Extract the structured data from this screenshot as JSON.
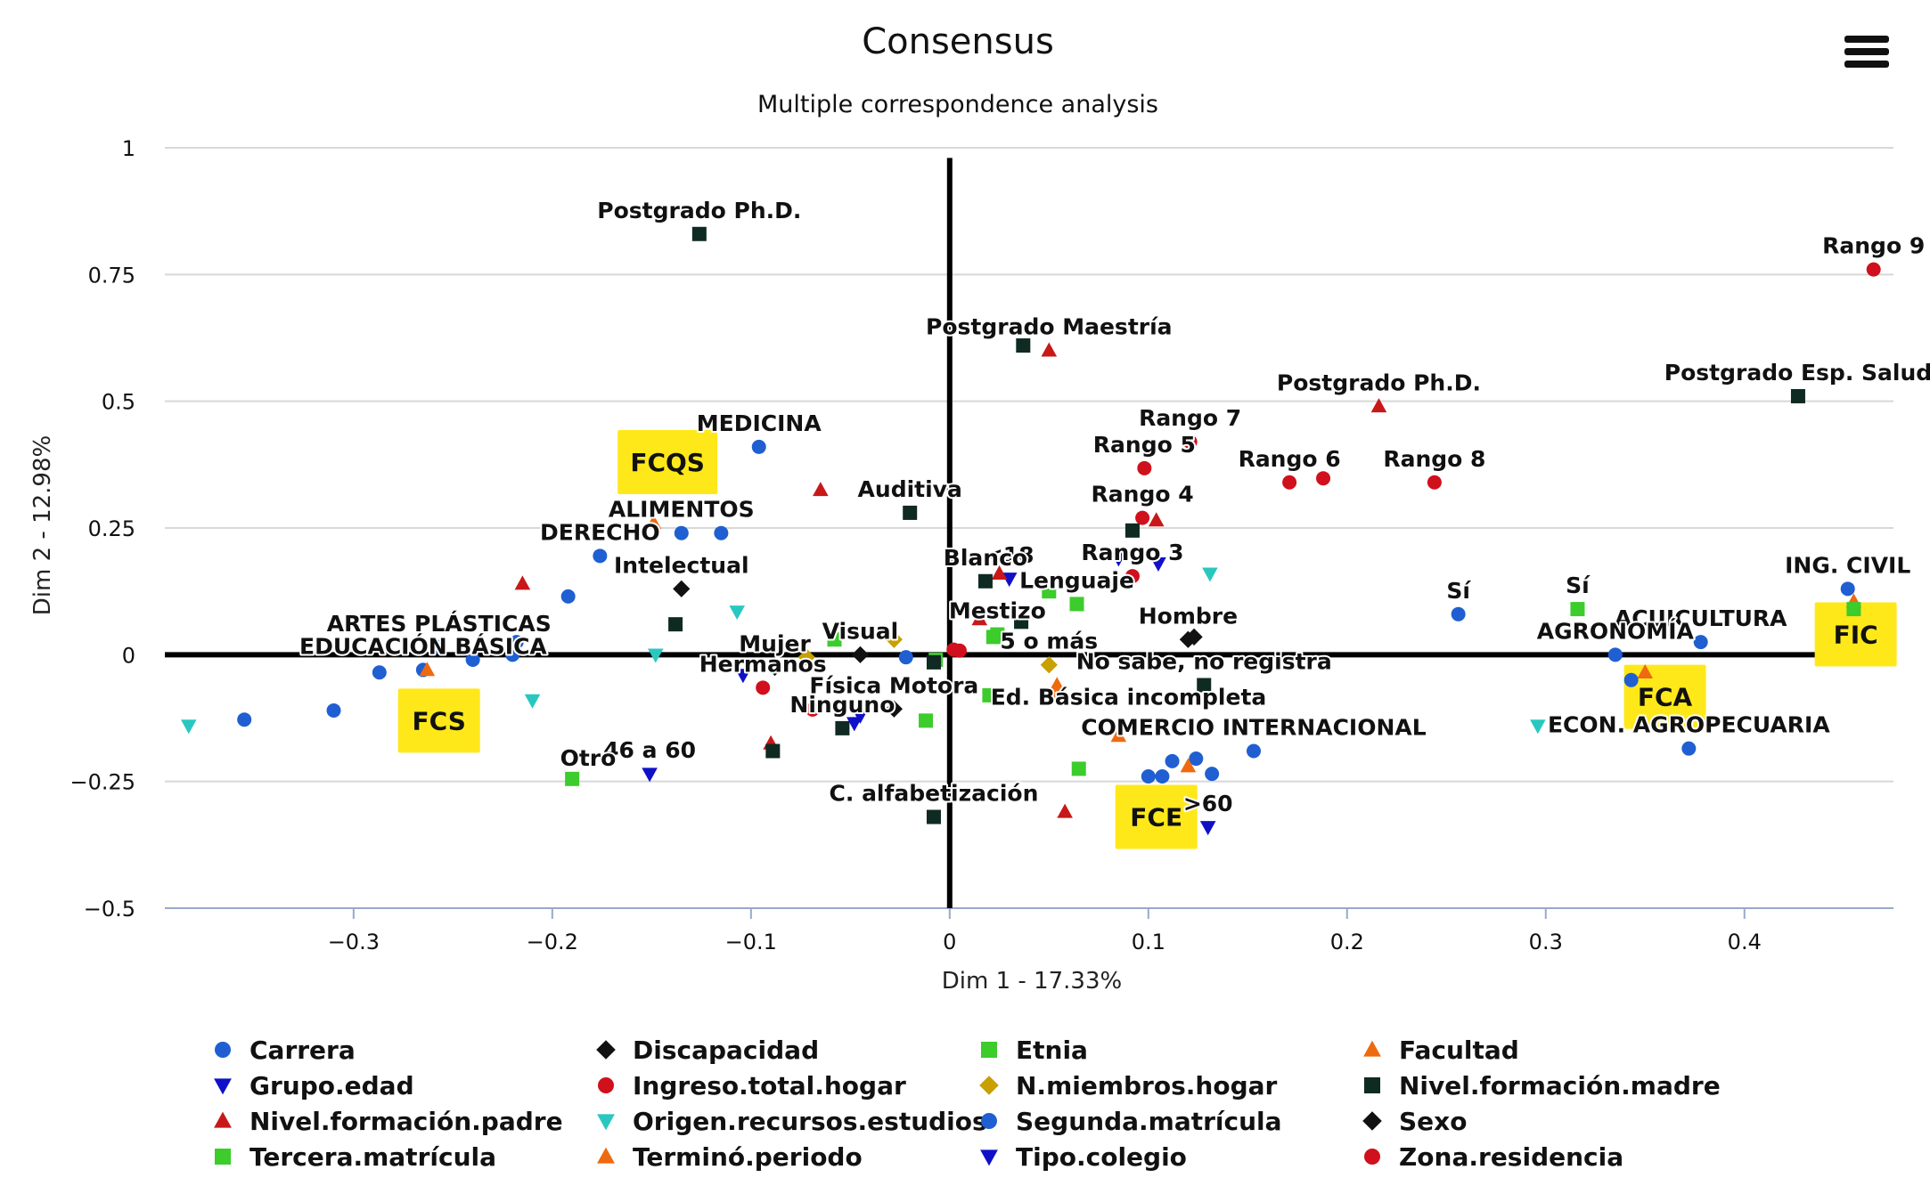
{
  "menu": {
    "icon": "hamburger-menu-icon"
  },
  "chart_data": {
    "type": "scatter",
    "title": "Consensus",
    "subtitle": "Multiple correspondence analysis",
    "xlabel": "Dim 1 - 17.33%",
    "ylabel": "Dim 2 - 12.98%",
    "xlim": [
      -0.395,
      0.475
    ],
    "ylim": [
      -0.5,
      1.0
    ],
    "xticks": [
      -0.3,
      -0.2,
      -0.1,
      0,
      0.1,
      0.2,
      0.3,
      0.4
    ],
    "xtick_labels": [
      "−0.3",
      "−0.2",
      "−0.1",
      "0",
      "0.1",
      "0.2",
      "0.3",
      "0.4"
    ],
    "yticks": [
      -0.5,
      -0.25,
      0,
      0.25,
      0.5,
      0.75,
      1
    ],
    "ytick_labels": [
      "−0.5",
      "−0.25",
      "0",
      "0.25",
      "0.5",
      "0.75",
      "1"
    ],
    "grid": "horizontal",
    "legend_position": "bottom",
    "series": [
      {
        "name": "Carrera",
        "symbol": "circle",
        "color": "#1f5fd1",
        "points": [
          {
            "x": -0.096,
            "y": 0.41,
            "label": "MEDICINA"
          },
          {
            "x": -0.135,
            "y": 0.24,
            "label": "ALIMENTOS"
          },
          {
            "x": -0.115,
            "y": 0.24
          },
          {
            "x": -0.176,
            "y": 0.195,
            "label": "DERECHO"
          },
          {
            "x": -0.192,
            "y": 0.115
          },
          {
            "x": -0.257,
            "y": 0.015,
            "label": "ARTES PLÁSTICAS"
          },
          {
            "x": -0.22,
            "y": 0.0
          },
          {
            "x": -0.24,
            "y": -0.01
          },
          {
            "x": -0.265,
            "y": -0.03,
            "label": "EDUCACIÓN BÁSICA"
          },
          {
            "x": -0.31,
            "y": -0.11
          },
          {
            "x": -0.355,
            "y": -0.128
          },
          {
            "x": 0.256,
            "y": 0.08,
            "label": "Sí"
          },
          {
            "x": 0.452,
            "y": 0.13,
            "label": "ING. CIVIL"
          },
          {
            "x": 0.378,
            "y": 0.025,
            "label": "ACUICULTURA"
          },
          {
            "x": 0.335,
            "y": 0.0,
            "label": "AGRONOMÍA"
          },
          {
            "x": 0.372,
            "y": -0.185,
            "label": "ECON. AGROPECUARIA"
          },
          {
            "x": 0.153,
            "y": -0.19,
            "label": "COMERCIO INTERNACIONAL"
          },
          {
            "x": 0.112,
            "y": -0.21
          },
          {
            "x": 0.124,
            "y": -0.205
          },
          {
            "x": 0.1,
            "y": -0.24
          },
          {
            "x": 0.132,
            "y": -0.235
          }
        ]
      },
      {
        "name": "Grupo.edad",
        "symbol": "triangle-down",
        "color": "#1010c8",
        "points": [
          {
            "x": -0.151,
            "y": -0.235,
            "label": "46 a 60"
          },
          {
            "x": 0.13,
            "y": -0.34,
            "label": ">60"
          },
          {
            "x": 0.03,
            "y": 0.15,
            "label": "<18"
          },
          {
            "x": -0.104,
            "y": -0.04
          },
          {
            "x": -0.045,
            "y": -0.12
          }
        ]
      },
      {
        "name": "Nivel.formación.padre",
        "symbol": "triangle-up",
        "color": "#c81818",
        "points": [
          {
            "x": 0.05,
            "y": 0.6,
            "label": "Postgrado Maestría"
          },
          {
            "x": 0.216,
            "y": 0.49,
            "label": "Postgrado Ph.D."
          },
          {
            "x": -0.065,
            "y": 0.325
          },
          {
            "x": 0.104,
            "y": 0.265
          },
          {
            "x": 0.025,
            "y": 0.16
          },
          {
            "x": 0.015,
            "y": 0.07
          },
          {
            "x": 0.058,
            "y": -0.31
          },
          {
            "x": -0.09,
            "y": -0.175
          },
          {
            "x": -0.215,
            "y": 0.14
          }
        ]
      },
      {
        "name": "Tercera.matrícula",
        "symbol": "square",
        "color": "#3ccc2c",
        "points": [
          {
            "x": 0.316,
            "y": 0.09,
            "label": "Sí"
          },
          {
            "x": -0.19,
            "y": -0.245
          },
          {
            "x": 0.065,
            "y": -0.225
          },
          {
            "x": 0.05,
            "y": 0.125
          },
          {
            "x": -0.058,
            "y": 0.03
          },
          {
            "x": -0.012,
            "y": -0.13
          },
          {
            "x": 0.02,
            "y": -0.08
          },
          {
            "x": 0.022,
            "y": 0.035
          }
        ]
      },
      {
        "name": "Discapacidad",
        "symbol": "diamond",
        "color": "#111111",
        "points": [
          {
            "x": -0.135,
            "y": 0.13,
            "label": "Intelectual"
          },
          {
            "x": -0.045,
            "y": 0.0,
            "label": "Visual"
          },
          {
            "x": -0.088,
            "y": -0.025,
            "label": "Mujer"
          },
          {
            "x": -0.028,
            "y": -0.107,
            "label": "Física Motora"
          },
          {
            "x": 0.123,
            "y": 0.035
          }
        ]
      },
      {
        "name": "Ingreso.total.hogar",
        "symbol": "circle",
        "color": "#d0101c",
        "points": [
          {
            "x": 0.465,
            "y": 0.76,
            "label": "Rango 9"
          },
          {
            "x": 0.121,
            "y": 0.42,
            "label": "Rango 7"
          },
          {
            "x": 0.098,
            "y": 0.368,
            "label": "Rango 5"
          },
          {
            "x": 0.171,
            "y": 0.34,
            "label": "Rango 6"
          },
          {
            "x": 0.188,
            "y": 0.348
          },
          {
            "x": 0.244,
            "y": 0.34,
            "label": "Rango 8"
          },
          {
            "x": 0.097,
            "y": 0.27,
            "label": "Rango 4"
          },
          {
            "x": 0.092,
            "y": 0.155,
            "label": "Rango 3"
          },
          {
            "x": -0.069,
            "y": -0.108
          },
          {
            "x": 0.005,
            "y": 0.008
          }
        ]
      },
      {
        "name": "Origen.recursos.estudios",
        "symbol": "triangle-down",
        "color": "#28c8c0",
        "points": [
          {
            "x": -0.383,
            "y": -0.14
          },
          {
            "x": -0.21,
            "y": -0.09
          },
          {
            "x": -0.107,
            "y": 0.085
          },
          {
            "x": 0.131,
            "y": 0.16
          },
          {
            "x": 0.296,
            "y": -0.14
          },
          {
            "x": -0.148,
            "y": 0.0
          }
        ]
      },
      {
        "name": "Terminó.periodo",
        "symbol": "triangle-up",
        "color": "#ee6a10",
        "points": [
          {
            "x": -0.149,
            "y": 0.26
          },
          {
            "x": 0.12,
            "y": -0.22
          },
          {
            "x": 0.35,
            "y": -0.035
          },
          {
            "x": 0.455,
            "y": 0.105
          },
          {
            "x": 0.054,
            "y": -0.06
          },
          {
            "x": -0.263,
            "y": -0.03
          }
        ]
      },
      {
        "name": "Etnia",
        "symbol": "square",
        "color": "#3ccc2c",
        "points": [
          {
            "x": 0.064,
            "y": 0.1,
            "label": "Lenguaje"
          },
          {
            "x": 0.024,
            "y": 0.04,
            "label": "Mestizo"
          },
          {
            "x": -0.007,
            "y": -0.01
          },
          {
            "x": 0.455,
            "y": 0.09
          }
        ]
      },
      {
        "name": "N.miembros.hogar",
        "symbol": "diamond",
        "color": "#c8a000",
        "points": [
          {
            "x": 0.05,
            "y": -0.02,
            "label": "5 o más"
          },
          {
            "x": -0.028,
            "y": 0.03
          },
          {
            "x": -0.072,
            "y": -0.005
          }
        ]
      },
      {
        "name": "Segunda.matrícula",
        "symbol": "circle",
        "color": "#1f5fd1",
        "points": [
          {
            "x": -0.218,
            "y": 0.025
          },
          {
            "x": -0.287,
            "y": -0.035
          },
          {
            "x": -0.022,
            "y": -0.005
          },
          {
            "x": 0.107,
            "y": -0.24
          },
          {
            "x": 0.343,
            "y": -0.05
          }
        ]
      },
      {
        "name": "Tipo.colegio",
        "symbol": "triangle-down",
        "color": "#1010c8",
        "points": [
          {
            "x": 0.085,
            "y": 0.19
          },
          {
            "x": 0.105,
            "y": 0.18
          },
          {
            "x": -0.048,
            "y": -0.135
          }
        ]
      },
      {
        "name": "Facultad",
        "symbol": "triangle-up",
        "color": "#ee6a10",
        "points": [
          {
            "x": 0.053,
            "y": -0.075
          },
          {
            "x": 0.085,
            "y": -0.16
          }
        ]
      },
      {
        "name": "Nivel.formación.madre",
        "symbol": "square",
        "color": "#0f2a22",
        "points": [
          {
            "x": -0.126,
            "y": 0.83,
            "label": "Postgrado Ph.D."
          },
          {
            "x": 0.037,
            "y": 0.61
          },
          {
            "x": 0.427,
            "y": 0.51,
            "label": "Postgrado Esp. Salud"
          },
          {
            "x": -0.02,
            "y": 0.28,
            "label": "Auditiva"
          },
          {
            "x": 0.092,
            "y": 0.245
          },
          {
            "x": 0.018,
            "y": 0.145,
            "label": "Blanco"
          },
          {
            "x": -0.138,
            "y": 0.06
          },
          {
            "x": 0.128,
            "y": -0.06,
            "label": "No sabe, no registra"
          },
          {
            "x": -0.054,
            "y": -0.145,
            "label": "Ninguno"
          },
          {
            "x": -0.089,
            "y": -0.19
          },
          {
            "x": -0.008,
            "y": -0.32,
            "label": "C. alfabetización"
          },
          {
            "x": -0.008,
            "y": -0.015
          },
          {
            "x": 0.036,
            "y": 0.065
          }
        ]
      },
      {
        "name": "Sexo",
        "symbol": "diamond",
        "color": "#111111",
        "points": [
          {
            "x": 0.12,
            "y": 0.03,
            "label": "Hombre"
          }
        ]
      },
      {
        "name": "Zona.residencia",
        "symbol": "circle",
        "color": "#d0101c",
        "points": [
          {
            "x": 0.002,
            "y": 0.01
          },
          {
            "x": -0.094,
            "y": -0.065,
            "label": "Hermanos"
          }
        ]
      }
    ],
    "free_labels": [
      {
        "text": "Otro",
        "x": -0.182,
        "y": -0.205
      },
      {
        "text": "Ed. Básica incompleta",
        "x": 0.09,
        "y": -0.085
      }
    ],
    "group_boxes": [
      {
        "text": "FCQS",
        "x": -0.142,
        "y": 0.38
      },
      {
        "text": "FCS",
        "x": -0.257,
        "y": -0.13
      },
      {
        "text": "FCE",
        "x": 0.104,
        "y": -0.32
      },
      {
        "text": "FCA",
        "x": 0.36,
        "y": -0.083
      },
      {
        "text": "FIC",
        "x": 0.456,
        "y": 0.04
      }
    ]
  }
}
